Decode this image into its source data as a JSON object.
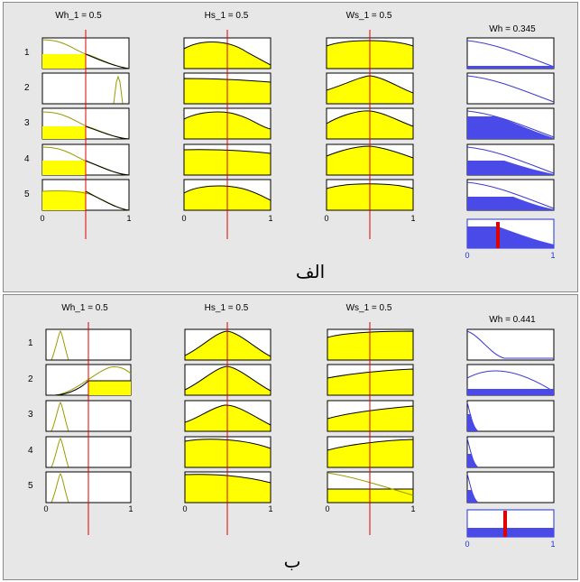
{
  "panel_a": {
    "caption": "الف",
    "input_headers": [
      "Wh_1 = 0.5",
      "Hs_1 = 0.5",
      "Ws_1 = 0.5"
    ],
    "output_header": "Wh = 0.345",
    "output_value": 0.345,
    "row_labels": [
      "1",
      "2",
      "3",
      "4",
      "5"
    ],
    "axis_ticks": {
      "min": "0",
      "max": "1"
    }
  },
  "panel_b": {
    "caption": "ب",
    "input_headers": [
      "Wh_1 = 0.5",
      "Hs_1 = 0.5",
      "Ws_1 = 0.5"
    ],
    "output_header": "Wh = 0.441",
    "output_value": 0.441,
    "row_labels": [
      "1",
      "2",
      "3",
      "4",
      "5"
    ],
    "axis_ticks": {
      "min": "0",
      "max": "1"
    }
  },
  "colors": {
    "panel_bg": "#e7e7e7",
    "input_fill": "#ffff00",
    "input_curve": "#9a9a00",
    "output_fill": "#4a4ae8",
    "output_curve": "#3a3ad0",
    "indicator_line": "#e00000",
    "output_tick_text": "#2233cc"
  }
}
